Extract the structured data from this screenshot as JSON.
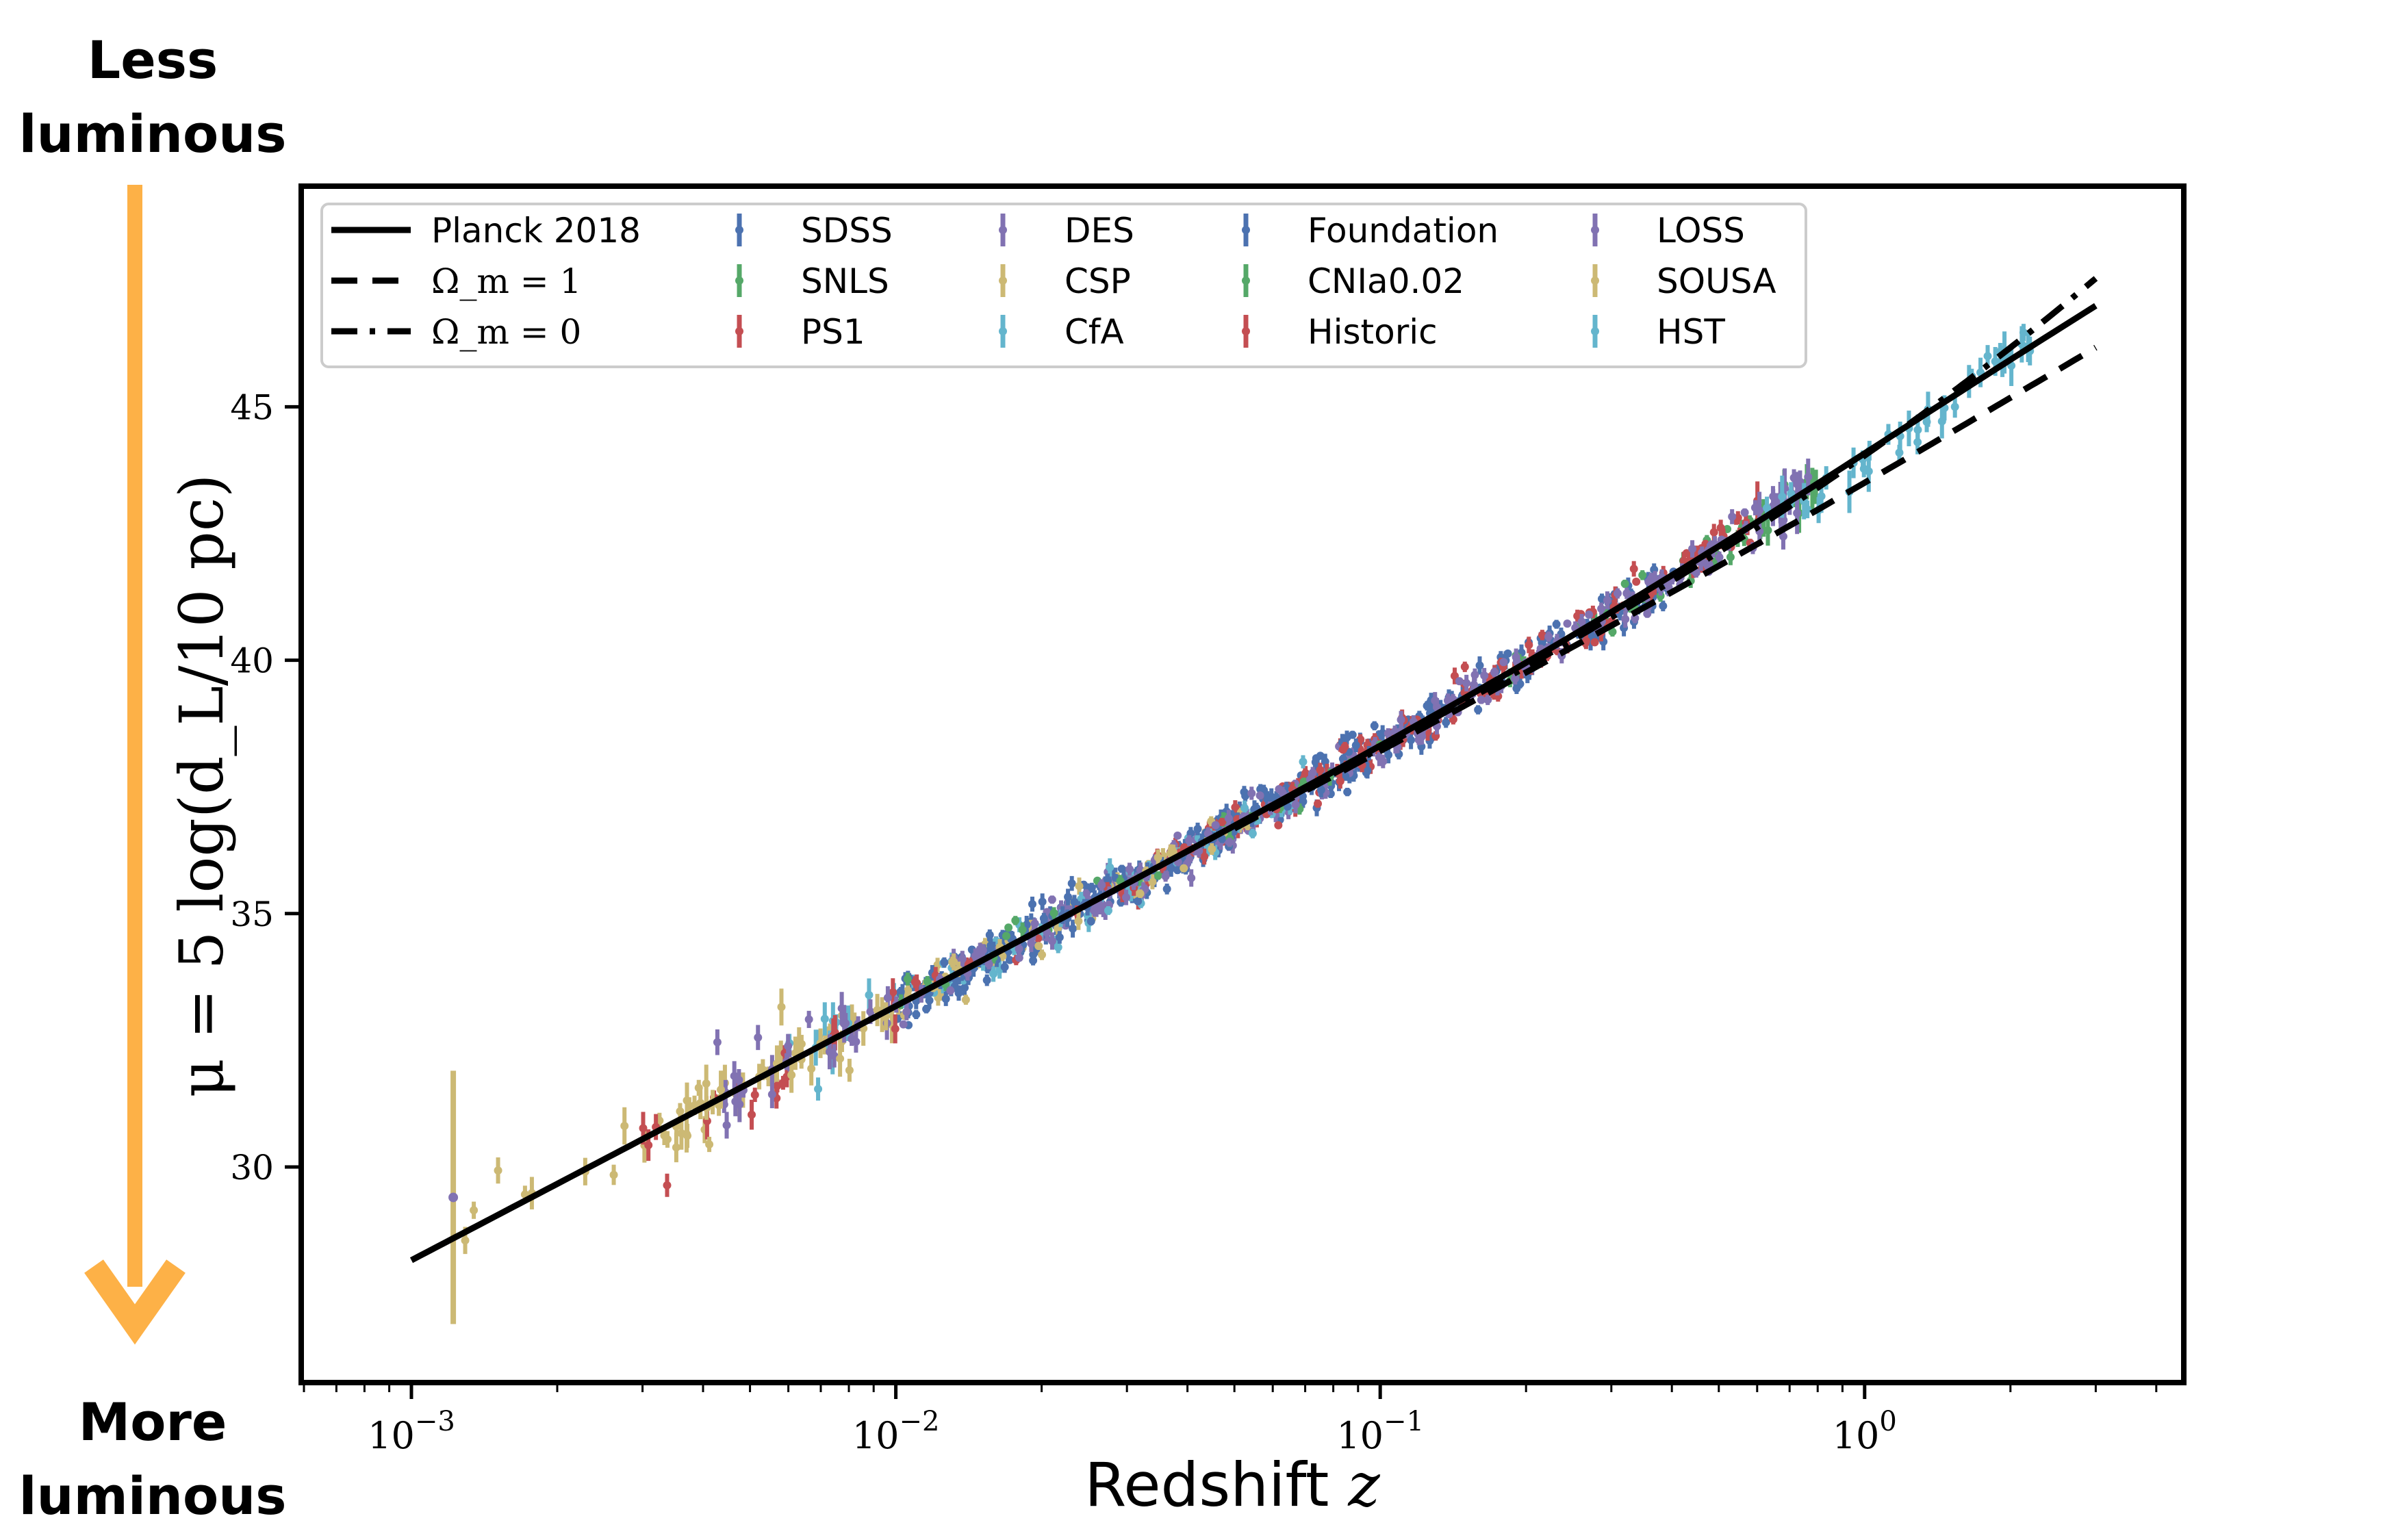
{
  "side_labels": {
    "top_line1": "Less",
    "top_line2": "luminous",
    "bottom_line1": "More",
    "bottom_line2": "luminous",
    "arrow_color": "#FDB147"
  },
  "chart_data": {
    "type": "scatter",
    "x_scale": "log",
    "xlabel": "Redshift z",
    "ylabel": "μ = 5 log(d_L/10 pc)",
    "xlim": [
      0.0006,
      4.5
    ],
    "ylim": [
      25.8,
      49.3
    ],
    "x_ticks": [
      {
        "value": 0.001,
        "base": "10",
        "exp": "−3"
      },
      {
        "value": 0.01,
        "base": "10",
        "exp": "−2"
      },
      {
        "value": 0.1,
        "base": "10",
        "exp": "−1"
      },
      {
        "value": 1,
        "base": "10",
        "exp": "0"
      }
    ],
    "y_ticks": [
      30,
      35,
      40,
      45
    ],
    "grid": false,
    "legend_position": "top-left",
    "lines": [
      {
        "name": "Planck 2018",
        "style": "solid",
        "color": "#000000"
      },
      {
        "name": "Ω_m = 1",
        "style": "dashed",
        "color": "#000000"
      },
      {
        "name": "Ω_m = 0",
        "style": "dashdot",
        "color": "#000000"
      }
    ],
    "series": [
      {
        "name": "SDSS",
        "color": "#4C72B0",
        "z_range": [
          0.01,
          0.42
        ],
        "count": 320
      },
      {
        "name": "SNLS",
        "color": "#55A868",
        "z_range": [
          0.16,
          0.8
        ],
        "count": 45
      },
      {
        "name": "PS1",
        "color": "#C44E52",
        "z_range": [
          0.03,
          0.62
        ],
        "count": 160
      },
      {
        "name": "DES",
        "color": "#8172B2",
        "z_range": [
          0.02,
          0.8
        ],
        "count": 220
      },
      {
        "name": "CSP",
        "color": "#CCB974",
        "z_range": [
          0.003,
          0.06
        ],
        "count": 90
      },
      {
        "name": "CfA",
        "color": "#64B5CD",
        "z_range": [
          0.006,
          0.07
        ],
        "count": 70
      },
      {
        "name": "Foundation",
        "color": "#4C72B0",
        "z_range": [
          0.01,
          0.1
        ],
        "count": 110
      },
      {
        "name": "CNIa0.02",
        "color": "#55A868",
        "z_range": [
          0.01,
          0.1
        ],
        "count": 30
      },
      {
        "name": "Historic",
        "color": "#C44E52",
        "z_range": [
          0.003,
          0.1
        ],
        "count": 50
      },
      {
        "name": "LOSS",
        "color": "#8172B2",
        "z_range": [
          0.004,
          0.08
        ],
        "count": 90
      },
      {
        "name": "SOUSA",
        "color": "#CCB974",
        "z_range": [
          0.0012,
          0.06
        ],
        "count": 40
      },
      {
        "name": "HST",
        "color": "#64B5CD",
        "z_range": [
          0.6,
          2.3
        ],
        "count": 40
      }
    ],
    "highlighted_points": [
      {
        "series": "SOUSA",
        "z": 0.00122,
        "mu": 29.4,
        "err": 2.5
      }
    ]
  }
}
